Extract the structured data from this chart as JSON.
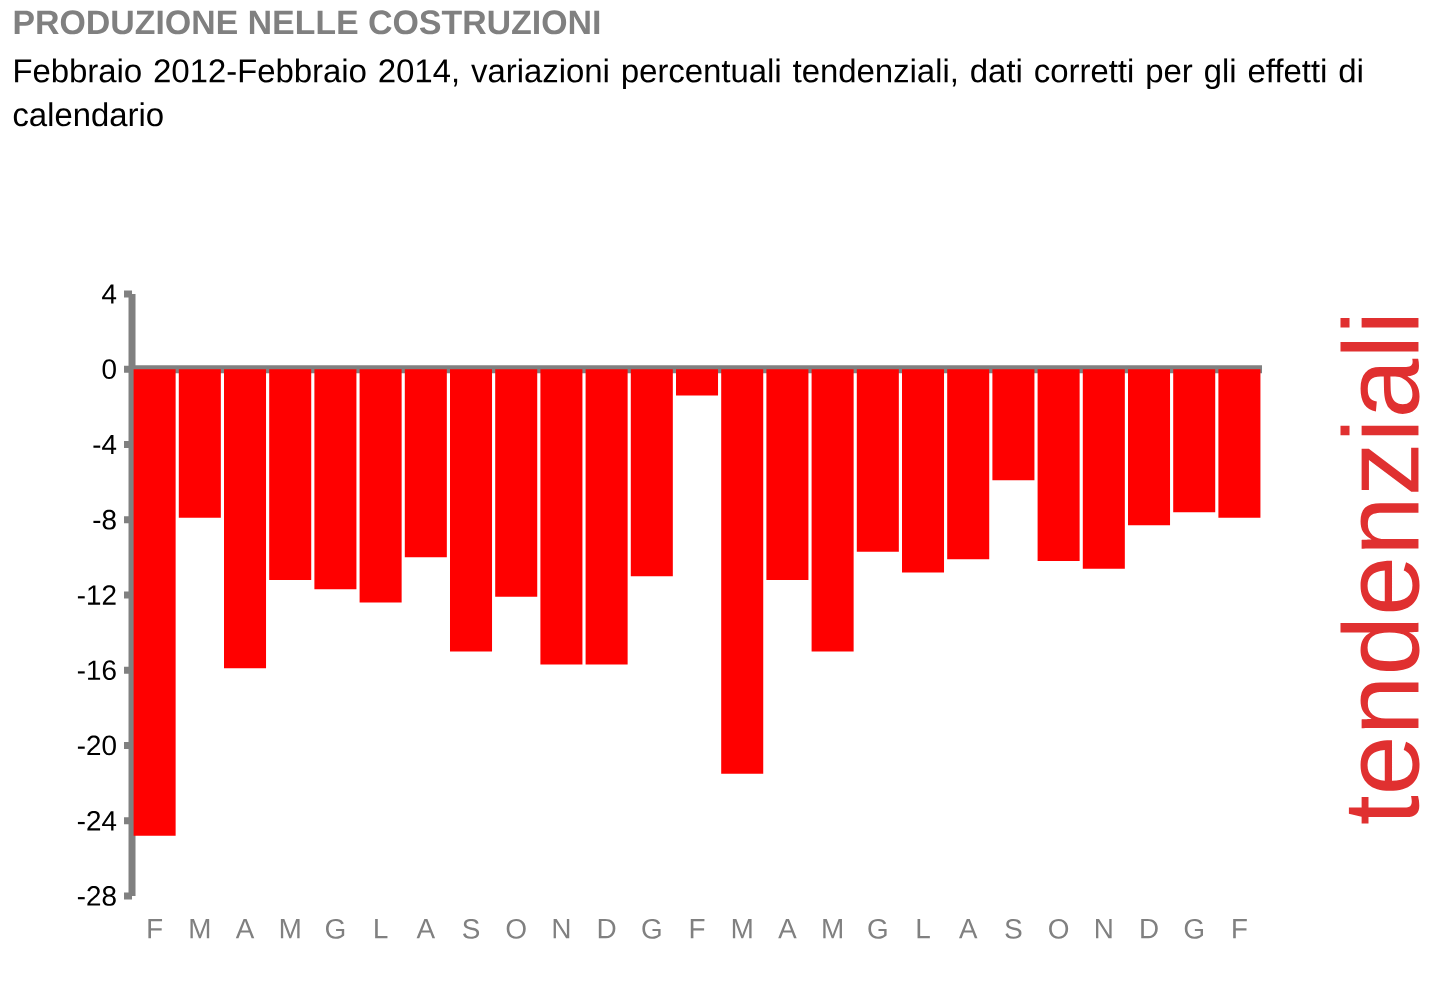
{
  "chart_data": {
    "type": "bar",
    "title": "PRODUZIONE NELLE COSTRUZIONI",
    "subtitle": "Febbraio 2012-Febbraio 2014, variazioni percentuali tendenziali, dati corretti per gli effetti di calendario",
    "annotations": [
      "tendenziali"
    ],
    "categories": [
      "F",
      "M",
      "A",
      "M",
      "G",
      "L",
      "A",
      "S",
      "O",
      "N",
      "D",
      "G",
      "F",
      "M",
      "A",
      "M",
      "G",
      "L",
      "A",
      "S",
      "O",
      "N",
      "D",
      "G",
      "F"
    ],
    "values": [
      -24.8,
      -7.9,
      -15.9,
      -11.2,
      -11.7,
      -12.4,
      -10.0,
      -15.0,
      -12.1,
      -15.7,
      -15.7,
      -11.0,
      -1.4,
      -21.5,
      -11.2,
      -15.0,
      -9.7,
      -10.8,
      -10.1,
      -5.9,
      -10.2,
      -10.6,
      -8.3,
      -7.6,
      -7.9
    ],
    "color": "#ff0000",
    "ylim": [
      -28,
      4
    ],
    "yticks": [
      -28,
      -24,
      -20,
      -16,
      -12,
      -8,
      -4,
      0,
      4
    ]
  }
}
